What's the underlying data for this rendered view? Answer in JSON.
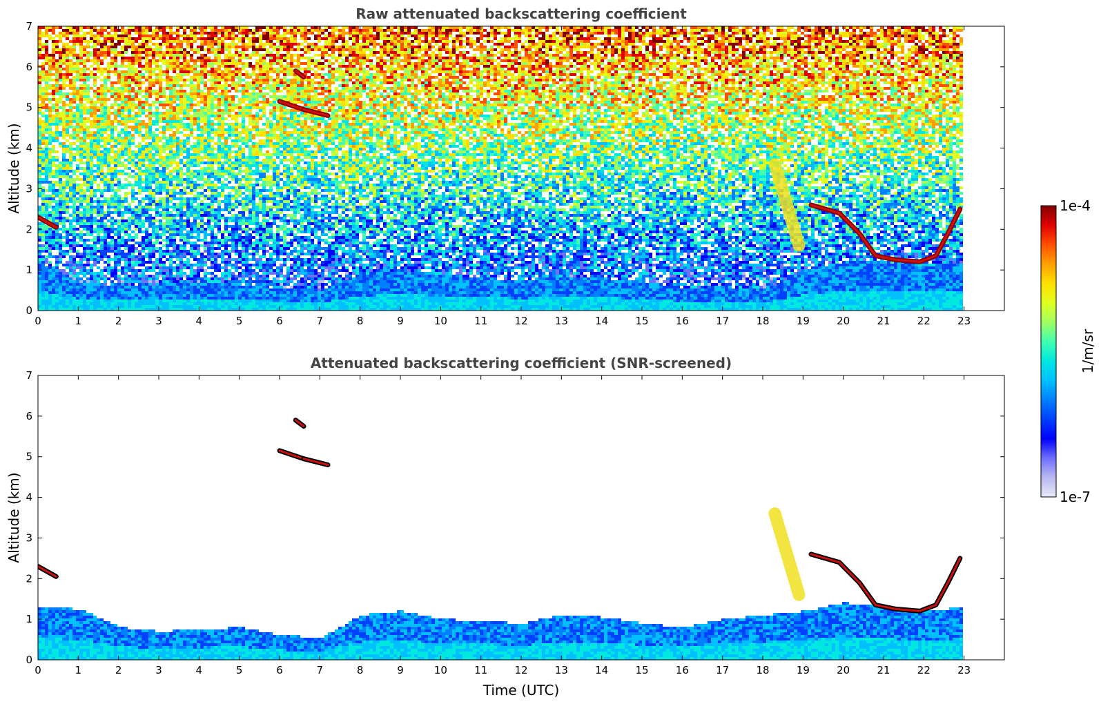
{
  "chart_data": [
    {
      "type": "heatmap",
      "title": "Raw attenuated backscattering coefficient",
      "ylabel": "Altitude (km)",
      "xlabel": "",
      "xlim": [
        0,
        24
      ],
      "ylim": [
        0,
        7
      ],
      "xticks": [
        0,
        1,
        2,
        3,
        4,
        5,
        6,
        7,
        8,
        9,
        10,
        11,
        12,
        13,
        14,
        15,
        16,
        17,
        18,
        19,
        20,
        21,
        22,
        23
      ],
      "yticks": [
        0,
        1,
        2,
        3,
        4,
        5,
        6,
        7
      ],
      "data_end_time": 23,
      "screened": false,
      "features": [
        {
          "kind": "boundary_layer_top",
          "x": [
            0,
            1,
            2,
            3,
            4,
            5,
            6,
            7,
            8,
            9,
            10,
            11,
            12,
            13,
            14,
            15,
            16,
            17,
            18,
            19,
            20,
            21,
            22,
            23
          ],
          "y": [
            1.2,
            0.7,
            0.6,
            0.65,
            0.7,
            0.65,
            0.55,
            0.5,
            0.9,
            1.0,
            0.9,
            0.8,
            0.75,
            0.85,
            0.8,
            0.7,
            0.55,
            0.6,
            0.5,
            1.0,
            1.2,
            1.2,
            1.1,
            1.2
          ]
        },
        {
          "kind": "cloud",
          "x": [
            0,
            0.45
          ],
          "y": [
            2.3,
            2.05
          ]
        },
        {
          "kind": "cloud",
          "x": [
            6.0,
            6.6
          ],
          "y": [
            5.15,
            4.95
          ]
        },
        {
          "kind": "cloud",
          "x": [
            6.6,
            7.2
          ],
          "y": [
            4.95,
            4.8
          ]
        },
        {
          "kind": "cloud",
          "x": [
            6.4,
            6.6
          ],
          "y": [
            5.9,
            5.75
          ]
        },
        {
          "kind": "cloud",
          "x": [
            19.2,
            19.9,
            20.4,
            20.8,
            21.3,
            21.9,
            22.3,
            22.6,
            22.9
          ],
          "y": [
            2.6,
            2.4,
            1.9,
            1.35,
            1.25,
            1.2,
            1.35,
            1.9,
            2.5
          ]
        },
        {
          "kind": "virga",
          "x": [
            18.3,
            18.6,
            18.9
          ],
          "y": [
            3.6,
            2.6,
            1.6
          ]
        }
      ]
    },
    {
      "type": "heatmap",
      "title": "Attenuated backscattering coefficient (SNR-screened)",
      "ylabel": "Altitude (km)",
      "xlabel": "Time (UTC)",
      "xlim": [
        0,
        24
      ],
      "ylim": [
        0,
        7
      ],
      "xticks": [
        0,
        1,
        2,
        3,
        4,
        5,
        6,
        7,
        8,
        9,
        10,
        11,
        12,
        13,
        14,
        15,
        16,
        17,
        18,
        19,
        20,
        21,
        22,
        23
      ],
      "yticks": [
        0,
        1,
        2,
        3,
        4,
        5,
        6,
        7
      ],
      "data_end_time": 23,
      "screened": true,
      "features": [
        {
          "kind": "boundary_layer_top",
          "x": [
            0,
            1,
            2,
            3,
            4,
            5,
            6,
            7,
            8,
            9,
            10,
            11,
            12,
            13,
            14,
            15,
            16,
            17,
            18,
            19,
            20,
            21,
            22,
            23
          ],
          "y": [
            1.3,
            1.25,
            0.8,
            0.7,
            0.75,
            0.8,
            0.6,
            0.55,
            1.1,
            1.2,
            1.0,
            0.95,
            0.9,
            1.1,
            1.05,
            0.9,
            0.8,
            1.0,
            1.1,
            1.2,
            1.4,
            1.3,
            1.2,
            1.3
          ]
        },
        {
          "kind": "cloud",
          "x": [
            0,
            0.45
          ],
          "y": [
            2.3,
            2.05
          ]
        },
        {
          "kind": "cloud",
          "x": [
            6.0,
            6.6
          ],
          "y": [
            5.15,
            4.95
          ]
        },
        {
          "kind": "cloud",
          "x": [
            6.6,
            7.2
          ],
          "y": [
            4.95,
            4.8
          ]
        },
        {
          "kind": "cloud",
          "x": [
            6.4,
            6.6
          ],
          "y": [
            5.9,
            5.75
          ]
        },
        {
          "kind": "cloud",
          "x": [
            19.2,
            19.9,
            20.4,
            20.8,
            21.3,
            21.9,
            22.3,
            22.6,
            22.9
          ],
          "y": [
            2.6,
            2.4,
            1.9,
            1.35,
            1.25,
            1.2,
            1.35,
            1.9,
            2.5
          ]
        },
        {
          "kind": "virga",
          "x": [
            18.3,
            18.6,
            18.9
          ],
          "y": [
            3.6,
            2.6,
            1.6
          ]
        }
      ]
    }
  ],
  "colorbar": {
    "label": "1/m/sr",
    "max_label": "1e-4",
    "min_label": "1e-7",
    "scale": "log",
    "range": [
      1e-07,
      0.0001
    ],
    "colors": [
      "#e8e8f8",
      "#b8b8f0",
      "#7070ff",
      "#0000ff",
      "#0040ff",
      "#0080ff",
      "#00c0ff",
      "#00e8e0",
      "#40ffb0",
      "#a0ff60",
      "#e0ff20",
      "#ffe000",
      "#ffa000",
      "#ff5000",
      "#e00000",
      "#800000"
    ]
  }
}
